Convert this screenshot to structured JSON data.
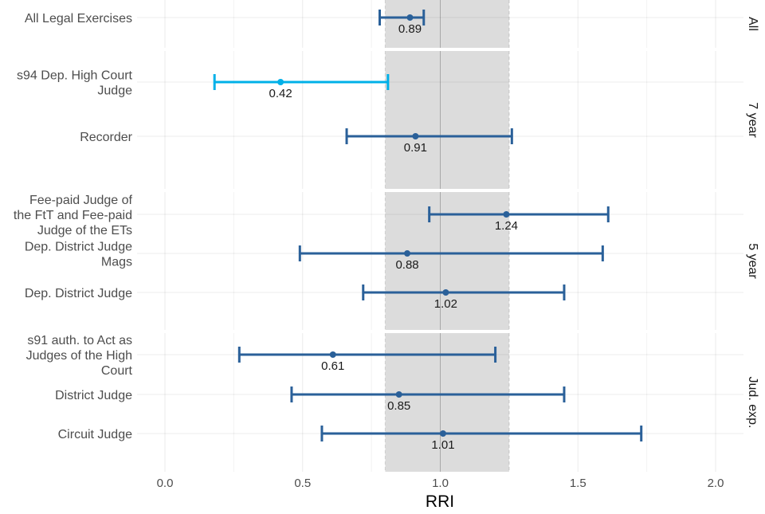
{
  "chart_data": {
    "type": "forest",
    "title": "",
    "xlabel": "RRI",
    "ylabel": "",
    "xlim": [
      -0.1,
      2.1
    ],
    "x_ticks": [
      "0.0",
      "0.5",
      "1.0",
      "1.5",
      "2.0"
    ],
    "x_tick_values": [
      0,
      0.5,
      1.0,
      1.5,
      2.0
    ],
    "reference_line": 1.0,
    "shaded_band": [
      0.8,
      1.25
    ],
    "grid": true,
    "colors": {
      "default": "#2a6099",
      "highlight": "#00b0e8",
      "band": "#dcdcdc"
    },
    "facets": [
      {
        "name": "All",
        "rows": [
          {
            "label": [
              "All Legal Exercises"
            ],
            "value": 0.89,
            "value_label": "0.89",
            "lo": 0.78,
            "hi": 0.94,
            "highlight": false
          }
        ]
      },
      {
        "name": "7 year",
        "rows": [
          {
            "label": [
              "s94 Dep. High Court",
              "Judge"
            ],
            "value": 0.42,
            "value_label": "0.42",
            "lo": 0.18,
            "hi": 0.81,
            "highlight": true
          },
          {
            "label": [
              "Recorder"
            ],
            "value": 0.91,
            "value_label": "0.91",
            "lo": 0.66,
            "hi": 1.26,
            "highlight": false
          }
        ]
      },
      {
        "name": "5 year",
        "rows": [
          {
            "label": [
              "Fee-paid Judge of",
              "the FtT and Fee-paid",
              "Judge of the ETs"
            ],
            "value": 1.24,
            "value_label": "1.24",
            "lo": 0.96,
            "hi": 1.61,
            "highlight": false
          },
          {
            "label": [
              "Dep. District Judge",
              "Mags"
            ],
            "value": 0.88,
            "value_label": "0.88",
            "lo": 0.49,
            "hi": 1.59,
            "highlight": false
          },
          {
            "label": [
              "Dep. District Judge"
            ],
            "value": 1.02,
            "value_label": "1.02",
            "lo": 0.72,
            "hi": 1.45,
            "highlight": false
          }
        ]
      },
      {
        "name": "Jud. exp.",
        "rows": [
          {
            "label": [
              "s91 auth. to Act as",
              "Judges of the High",
              "Court"
            ],
            "value": 0.61,
            "value_label": "0.61",
            "lo": 0.27,
            "hi": 1.2,
            "highlight": false
          },
          {
            "label": [
              "District Judge"
            ],
            "value": 0.85,
            "value_label": "0.85",
            "lo": 0.46,
            "hi": 1.45,
            "highlight": false
          },
          {
            "label": [
              "Circuit Judge"
            ],
            "value": 1.01,
            "value_label": "1.01",
            "lo": 0.57,
            "hi": 1.73,
            "highlight": false
          }
        ]
      }
    ]
  }
}
